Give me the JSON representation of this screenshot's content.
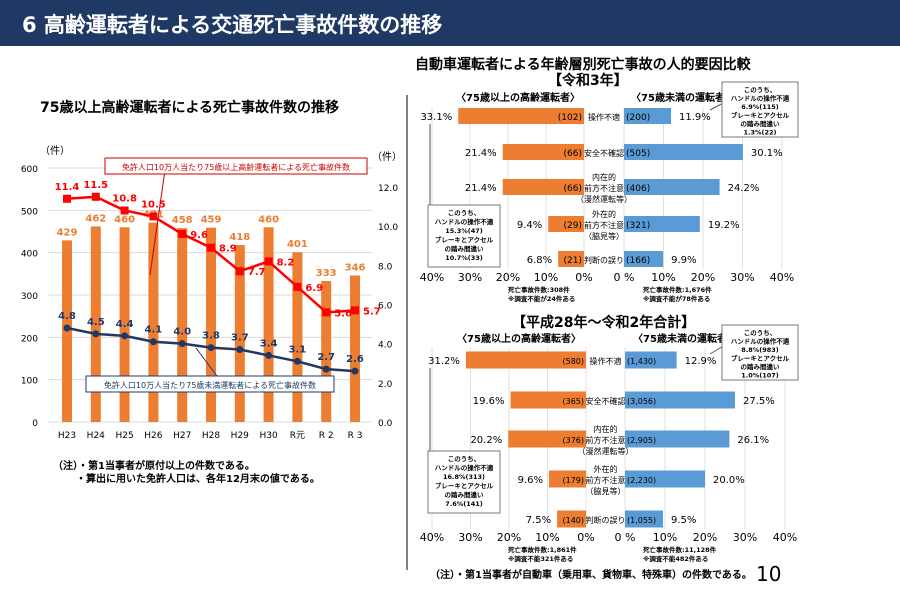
{
  "header": {
    "title": "6  高齢運転者による交通死亡事故件数の推移"
  },
  "page_number": "10",
  "chart_data": [
    {
      "type": "bar+line",
      "title": "75歳以上高齢運転者による死亡事故件数の推移",
      "ylabel_left": "（件）",
      "ylabel_right": "（件）",
      "ylim_left": [
        0,
        600
      ],
      "yticks_left": [
        "0",
        "100",
        "200",
        "300",
        "400",
        "500",
        "600"
      ],
      "ylim_right": [
        0,
        12
      ],
      "yticks_right": [
        "0.0",
        "2.0",
        "4.0",
        "6.0",
        "8.0",
        "10.0",
        "12.0"
      ],
      "categories": [
        "H23",
        "H24",
        "H25",
        "H26",
        "H27",
        "H28",
        "H29",
        "H30",
        "R元",
        "R 2",
        "R 3"
      ],
      "bars": {
        "values": [
          429,
          462,
          460,
          471,
          458,
          459,
          418,
          460,
          401,
          333,
          346
        ],
        "color": "#ed7d31"
      },
      "series": [
        {
          "name": "免許人口10万人当たり75歳以上高齢運転者による死亡事故件数",
          "axis": "right",
          "color": "#ff0000",
          "values": [
            11.4,
            11.5,
            10.8,
            10.5,
            9.6,
            8.9,
            7.7,
            8.2,
            6.9,
            5.6,
            5.7
          ]
        },
        {
          "name": "免許人口10万人当たり75歳未満運転者による死亡事故件数",
          "axis": "right",
          "color": "#1f3864",
          "values": [
            4.8,
            4.5,
            4.4,
            4.1,
            4.0,
            3.8,
            3.7,
            3.4,
            3.1,
            2.7,
            2.6
          ]
        }
      ],
      "notes": [
        "（注）・第1当事者が原付以上の件数である。",
        "・算出に用いた免許人口は、各年12月末の値である。"
      ]
    },
    {
      "type": "butterfly-bar",
      "title": "自動車運転者による年齢層別死亡事故の人的要因比較",
      "subtitle": "【令和3年】",
      "left_label": "〈75歳以上の高齢運転者〉",
      "right_label": "〈75歳未満の運転者〉",
      "categories": [
        "操作不適",
        "安全不確認",
        "内在的|前方不注意|（漫然運転等）",
        "外在的|前方不注意|（脇見等）",
        "判断の誤り"
      ],
      "left": {
        "pct": [
          33.1,
          21.4,
          21.4,
          9.4,
          6.8
        ],
        "counts": [
          "(102)",
          "(66)",
          "(66)",
          "(29)",
          "(21)"
        ],
        "color": "#ed7d31"
      },
      "right": {
        "pct": [
          11.9,
          30.1,
          24.2,
          19.2,
          9.9
        ],
        "counts": [
          "(200)",
          "(505)",
          "(406)",
          "(321)",
          "(166)"
        ],
        "color": "#5b9bd5"
      },
      "left_ticks": [
        "40%",
        "30%",
        "20%",
        "10%",
        "0%"
      ],
      "right_ticks": [
        "0 %",
        "10%",
        "20%",
        "30%",
        "40%"
      ],
      "left_callout": [
        "このうち、",
        "ハンドルの操作不適",
        "15.3%(47)",
        "ブレーキとアクセル",
        "の踏み間違い",
        "10.7%(33)"
      ],
      "right_callout": [
        "このうち、",
        "ハンドルの操作不適",
        "6.9%(115)",
        "ブレーキとアクセル",
        "の踏み間違い",
        "1.3%(22)"
      ],
      "left_foot": [
        "死亡事故件数:308件",
        "※調査不能が24件ある"
      ],
      "right_foot": [
        "死亡事故件数:1,676件",
        "※調査不能が78件ある"
      ]
    },
    {
      "type": "butterfly-bar",
      "subtitle": "【平成28年～令和2年合計】",
      "left_label": "〈75歳以上の高齢運転者〉",
      "right_label": "〈75歳未満の運転者〉",
      "categories": [
        "操作不適",
        "安全不確認",
        "内在的|前方不注意|（漫然運転等）",
        "外在的|前方不注意|（脇見等）",
        "判断の誤り"
      ],
      "left": {
        "pct": [
          31.2,
          19.6,
          20.2,
          9.6,
          7.5
        ],
        "counts": [
          "(580)",
          "(365)",
          "(376)",
          "(179)",
          "(140)"
        ],
        "color": "#ed7d31"
      },
      "right": {
        "pct": [
          12.9,
          27.5,
          26.1,
          20.0,
          9.5
        ],
        "counts": [
          "(1,430)",
          "(3,056)",
          "(2,905)",
          "(2,230)",
          "(1,055)"
        ],
        "color": "#5b9bd5"
      },
      "left_ticks": [
        "40%",
        "30%",
        "20%",
        "10%",
        "0%"
      ],
      "right_ticks": [
        "0 %",
        "10%",
        "20%",
        "30%",
        "40%"
      ],
      "left_callout": [
        "このうち、",
        "ハンドルの操作不適",
        "16.8%(313)",
        "ブレーキとアクセル",
        "の踏み間違い",
        "7.6%(141)"
      ],
      "right_callout": [
        "このうち、",
        "ハンドルの操作不適",
        "8.8%(983)",
        "ブレーキとアクセル",
        "の踏み間違い",
        "1.0%(107)"
      ],
      "left_foot": [
        "死亡事故件数:1,861件",
        "※調査不能321件ある"
      ],
      "right_foot": [
        "死亡事故件数:11,128件",
        "※調査不能482件ある"
      ],
      "note": "（注）・第1当事者が自動車（乗用車、貨物車、特殊車）の件数である。"
    }
  ]
}
